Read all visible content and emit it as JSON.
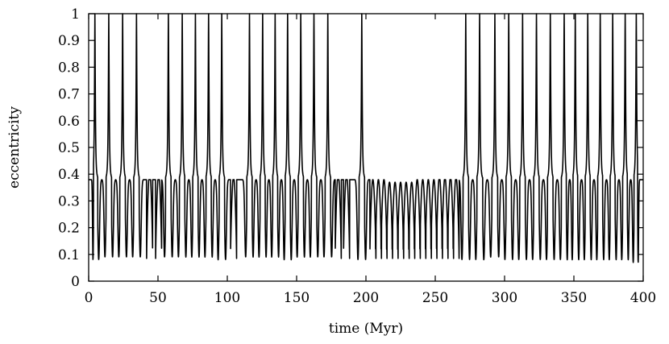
{
  "chart_data": {
    "type": "line",
    "title": "",
    "xlabel": "time (Myr)",
    "ylabel": "eccentricity",
    "xlim": [
      0,
      400
    ],
    "ylim": [
      0,
      1
    ],
    "xticks": [
      0,
      50,
      100,
      150,
      200,
      250,
      300,
      350,
      400
    ],
    "yticks": [
      0,
      0.1,
      0.2,
      0.3,
      0.4,
      0.5,
      0.6,
      0.7,
      0.8,
      0.9,
      1
    ],
    "xtick_labels": [
      "0",
      "50",
      "100",
      "150",
      "200",
      "250",
      "300",
      "350",
      "400"
    ],
    "ytick_labels": [
      "0",
      "0.1",
      "0.2",
      "0.3",
      "0.4",
      "0.5",
      "0.6",
      "0.7",
      "0.8",
      "0.9",
      "1"
    ],
    "grid": false,
    "legend": "none",
    "line_color": "#000000",
    "series": [
      {
        "peaks": [
          [
            4.5,
            0.98,
            0.08
          ],
          [
            14.5,
            0.98,
            0.09
          ],
          [
            24.5,
            0.98,
            0.09
          ],
          [
            34.5,
            0.98,
            0.09
          ],
          [
            57.5,
            0.99,
            0.09
          ],
          [
            67.5,
            0.98,
            0.09
          ],
          [
            77,
            0.98,
            0.09
          ],
          [
            86.5,
            0.99,
            0.09
          ],
          [
            96,
            0.97,
            0.08
          ],
          [
            116,
            0.98,
            0.09
          ],
          [
            125.5,
            0.98,
            0.09
          ],
          [
            134.5,
            0.98,
            0.09
          ],
          [
            143.5,
            0.99,
            0.08
          ],
          [
            153,
            0.99,
            0.09
          ],
          [
            162.5,
            0.99,
            0.09
          ],
          [
            172.5,
            0.98,
            0.09
          ],
          [
            197,
            0.98,
            0.08
          ],
          [
            272,
            0.98,
            0.08
          ],
          [
            282,
            0.99,
            0.08
          ],
          [
            293,
            0.98,
            0.09
          ],
          [
            303,
            0.99,
            0.08
          ],
          [
            313,
            0.98,
            0.08
          ],
          [
            323,
            0.99,
            0.08
          ],
          [
            333,
            0.98,
            0.08
          ],
          [
            343,
            0.99,
            0.08
          ],
          [
            351,
            0.98,
            0.08
          ],
          [
            360,
            0.98,
            0.08
          ],
          [
            369,
            0.99,
            0.08
          ],
          [
            378,
            0.98,
            0.08
          ],
          [
            387,
            0.99,
            0.08
          ],
          [
            395,
            0.98,
            0.07
          ]
        ],
        "bumps": [
          [
            44,
            0.41
          ],
          [
            50.5,
            0.4
          ],
          [
            104.5,
            0.39
          ],
          [
            180,
            0.4
          ],
          [
            186,
            0.4
          ],
          [
            205,
            0.38
          ],
          [
            209,
            0.38
          ],
          [
            213,
            0.38
          ],
          [
            217,
            0.37
          ],
          [
            221,
            0.37
          ],
          [
            225,
            0.37
          ],
          [
            229,
            0.37
          ],
          [
            233,
            0.37
          ],
          [
            237,
            0.38
          ],
          [
            241,
            0.38
          ],
          [
            245,
            0.38
          ],
          [
            249,
            0.38
          ],
          [
            253,
            0.39
          ],
          [
            257,
            0.39
          ],
          [
            261,
            0.39
          ],
          [
            265,
            0.39
          ]
        ]
      }
    ]
  }
}
